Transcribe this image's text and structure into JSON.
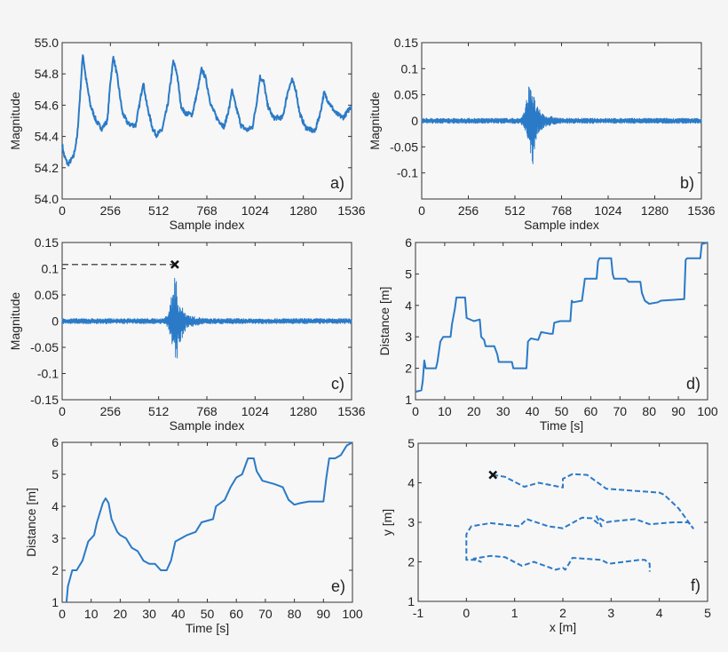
{
  "chart_data": [
    {
      "id": "a",
      "type": "line",
      "panel_label": "a)",
      "xlabel": "Sample index",
      "ylabel": "Magnitude",
      "xlim": [
        0,
        1536
      ],
      "ylim": [
        54.0,
        55.0
      ],
      "xticks": [
        0,
        256,
        512,
        768,
        1024,
        1280,
        1536
      ],
      "xtick_labels": [
        "0",
        "256",
        "512",
        "768",
        "1024",
        "1280",
        "1536"
      ],
      "yticks": [
        54.0,
        54.2,
        54.4,
        54.6,
        54.8,
        55.0
      ],
      "ytick_labels": [
        "54.0",
        "54.2",
        "54.4",
        "54.6",
        "54.8",
        "55.0"
      ],
      "line_style": "solid",
      "noisy": true,
      "points": [
        [
          0,
          54.35
        ],
        [
          10,
          54.28
        ],
        [
          30,
          54.22
        ],
        [
          60,
          54.27
        ],
        [
          80,
          54.4
        ],
        [
          100,
          54.75
        ],
        [
          110,
          54.93
        ],
        [
          125,
          54.78
        ],
        [
          150,
          54.6
        ],
        [
          180,
          54.5
        ],
        [
          210,
          54.45
        ],
        [
          240,
          54.5
        ],
        [
          256,
          54.75
        ],
        [
          272,
          54.91
        ],
        [
          290,
          54.8
        ],
        [
          320,
          54.55
        ],
        [
          350,
          54.48
        ],
        [
          390,
          54.47
        ],
        [
          410,
          54.6
        ],
        [
          430,
          54.75
        ],
        [
          450,
          54.6
        ],
        [
          480,
          54.45
        ],
        [
          500,
          54.41
        ],
        [
          530,
          54.44
        ],
        [
          560,
          54.6
        ],
        [
          590,
          54.88
        ],
        [
          610,
          54.8
        ],
        [
          630,
          54.6
        ],
        [
          650,
          54.55
        ],
        [
          690,
          54.54
        ],
        [
          720,
          54.7
        ],
        [
          740,
          54.83
        ],
        [
          760,
          54.78
        ],
        [
          790,
          54.6
        ],
        [
          820,
          54.52
        ],
        [
          860,
          54.46
        ],
        [
          890,
          54.6
        ],
        [
          900,
          54.7
        ],
        [
          920,
          54.6
        ],
        [
          950,
          54.47
        ],
        [
          980,
          54.44
        ],
        [
          1010,
          54.46
        ],
        [
          1030,
          54.6
        ],
        [
          1050,
          54.78
        ],
        [
          1070,
          54.75
        ],
        [
          1090,
          54.6
        ],
        [
          1120,
          54.52
        ],
        [
          1170,
          54.52
        ],
        [
          1200,
          54.7
        ],
        [
          1220,
          54.76
        ],
        [
          1240,
          54.7
        ],
        [
          1260,
          54.55
        ],
        [
          1290,
          54.46
        ],
        [
          1340,
          54.43
        ],
        [
          1370,
          54.55
        ],
        [
          1390,
          54.68
        ],
        [
          1410,
          54.63
        ],
        [
          1450,
          54.55
        ],
        [
          1490,
          54.52
        ],
        [
          1510,
          54.55
        ],
        [
          1536,
          54.6
        ]
      ]
    },
    {
      "id": "b",
      "type": "line",
      "panel_label": "b)",
      "xlabel": "Sample index",
      "ylabel": "Magnitude",
      "xlim": [
        0,
        1536
      ],
      "ylim": [
        -0.15,
        0.15
      ],
      "xticks": [
        0,
        256,
        512,
        768,
        1024,
        1280,
        1536
      ],
      "xtick_labels": [
        "0",
        "256",
        "512",
        "768",
        "1024",
        "1280",
        "1536"
      ],
      "yticks": [
        -0.15,
        -0.1,
        -0.05,
        0,
        0.05,
        0.1,
        0.15
      ],
      "ytick_labels": [
        "",
        "-0.1",
        "-0.05",
        "0",
        "0.05",
        "0.1",
        "0.15"
      ],
      "envelope": [
        [
          0,
          0.005,
          -0.005
        ],
        [
          540,
          0.005,
          -0.005
        ],
        [
          555,
          0.012,
          -0.01
        ],
        [
          570,
          0.03,
          -0.03
        ],
        [
          585,
          0.06,
          -0.05
        ],
        [
          598,
          0.1,
          -0.06
        ],
        [
          605,
          0.08,
          -0.1
        ],
        [
          615,
          0.05,
          -0.07
        ],
        [
          630,
          0.03,
          -0.04
        ],
        [
          650,
          0.02,
          -0.02
        ],
        [
          680,
          0.01,
          -0.012
        ],
        [
          720,
          0.008,
          -0.008
        ],
        [
          760,
          0.005,
          -0.005
        ],
        [
          1536,
          0.005,
          -0.005
        ]
      ]
    },
    {
      "id": "c",
      "type": "line",
      "panel_label": "c)",
      "xlabel": "Sample index",
      "ylabel": "Magnitude",
      "xlim": [
        0,
        1536
      ],
      "ylim": [
        -0.15,
        0.15
      ],
      "xticks": [
        0,
        256,
        512,
        768,
        1024,
        1280,
        1536
      ],
      "xtick_labels": [
        "0",
        "256",
        "512",
        "768",
        "1024",
        "1280",
        "1536"
      ],
      "yticks": [
        -0.15,
        -0.1,
        -0.05,
        0,
        0.05,
        0.1,
        0.15
      ],
      "ytick_labels": [
        "-0.15",
        "-0.1",
        "-0.05",
        "0",
        "0.05",
        "0.1",
        "0.15"
      ],
      "envelope": [
        [
          0,
          0.005,
          -0.005
        ],
        [
          540,
          0.005,
          -0.005
        ],
        [
          555,
          0.012,
          -0.01
        ],
        [
          570,
          0.03,
          -0.03
        ],
        [
          585,
          0.06,
          -0.05
        ],
        [
          598,
          0.108,
          -0.06
        ],
        [
          605,
          0.08,
          -0.1
        ],
        [
          615,
          0.05,
          -0.07
        ],
        [
          630,
          0.03,
          -0.04
        ],
        [
          650,
          0.02,
          -0.02
        ],
        [
          680,
          0.01,
          -0.012
        ],
        [
          720,
          0.008,
          -0.008
        ],
        [
          760,
          0.005,
          -0.005
        ],
        [
          1536,
          0.005,
          -0.005
        ]
      ],
      "peak_marker": {
        "x": 598,
        "y": 0.108,
        "symbol": "x",
        "guide": "dashed"
      }
    },
    {
      "id": "d",
      "type": "line",
      "panel_label": "d)",
      "xlabel": "Time [s]",
      "ylabel": "Distance [m]",
      "xlim": [
        0,
        100
      ],
      "ylim": [
        1,
        6
      ],
      "xticks": [
        0,
        10,
        20,
        30,
        40,
        50,
        60,
        70,
        80,
        90,
        100
      ],
      "xtick_labels": [
        "0",
        "10",
        "20",
        "30",
        "40",
        "50",
        "60",
        "70",
        "80",
        "90",
        "100"
      ],
      "yticks": [
        1,
        2,
        3,
        4,
        5,
        6
      ],
      "ytick_labels": [
        "1",
        "2",
        "3",
        "4",
        "5",
        "6"
      ],
      "line_style": "solid",
      "points": [
        [
          0,
          1.25
        ],
        [
          2,
          1.3
        ],
        [
          2.5,
          1.6
        ],
        [
          3,
          2.25
        ],
        [
          3.5,
          2.0
        ],
        [
          7,
          2.0
        ],
        [
          7.5,
          2.2
        ],
        [
          8.5,
          2.85
        ],
        [
          9.5,
          3.0
        ],
        [
          12,
          3.0
        ],
        [
          12.5,
          3.4
        ],
        [
          13.5,
          3.9
        ],
        [
          14,
          4.25
        ],
        [
          17,
          4.25
        ],
        [
          17.5,
          3.6
        ],
        [
          20,
          3.5
        ],
        [
          22,
          3.55
        ],
        [
          22.5,
          3.0
        ],
        [
          23.5,
          2.9
        ],
        [
          24,
          2.7
        ],
        [
          27,
          2.7
        ],
        [
          28,
          2.45
        ],
        [
          28.5,
          2.2
        ],
        [
          33,
          2.2
        ],
        [
          33.5,
          2.0
        ],
        [
          38,
          2.0
        ],
        [
          38.5,
          2.85
        ],
        [
          39.5,
          2.95
        ],
        [
          42,
          2.9
        ],
        [
          43,
          3.15
        ],
        [
          46,
          3.1
        ],
        [
          47,
          3.1
        ],
        [
          47.5,
          3.45
        ],
        [
          49.5,
          3.5
        ],
        [
          53,
          3.5
        ],
        [
          53.5,
          4.15
        ],
        [
          54,
          4.1
        ],
        [
          57,
          4.15
        ],
        [
          58,
          4.85
        ],
        [
          62,
          4.85
        ],
        [
          62.5,
          5.4
        ],
        [
          63,
          5.5
        ],
        [
          67,
          5.5
        ],
        [
          67.5,
          5.0
        ],
        [
          68,
          4.85
        ],
        [
          72,
          4.85
        ],
        [
          73,
          4.75
        ],
        [
          77,
          4.75
        ],
        [
          77.5,
          4.4
        ],
        [
          78.5,
          4.15
        ],
        [
          80,
          4.05
        ],
        [
          83,
          4.1
        ],
        [
          84,
          4.15
        ],
        [
          92,
          4.2
        ],
        [
          92.5,
          5.45
        ],
        [
          93,
          5.5
        ],
        [
          97.5,
          5.5
        ],
        [
          98,
          5.95
        ],
        [
          100,
          6.0
        ]
      ]
    },
    {
      "id": "e",
      "type": "line",
      "panel_label": "e)",
      "xlabel": "Time [s]",
      "ylabel": "Distance [m]",
      "xlim": [
        0,
        100
      ],
      "ylim": [
        1,
        6
      ],
      "xticks": [
        0,
        10,
        20,
        30,
        40,
        50,
        60,
        70,
        80,
        90,
        100
      ],
      "xtick_labels": [
        "0",
        "10",
        "20",
        "30",
        "40",
        "50",
        "60",
        "70",
        "80",
        "90",
        "100"
      ],
      "yticks": [
        1,
        2,
        3,
        4,
        5,
        6
      ],
      "ytick_labels": [
        "1",
        "2",
        "3",
        "4",
        "5",
        "6"
      ],
      "line_style": "solid",
      "points": [
        [
          1.5,
          1.0
        ],
        [
          2,
          1.5
        ],
        [
          3.5,
          2.0
        ],
        [
          5,
          2.0
        ],
        [
          7,
          2.3
        ],
        [
          9,
          2.9
        ],
        [
          11,
          3.1
        ],
        [
          12,
          3.5
        ],
        [
          14,
          4.1
        ],
        [
          15,
          4.25
        ],
        [
          16,
          4.1
        ],
        [
          17,
          3.6
        ],
        [
          19,
          3.2
        ],
        [
          20,
          3.1
        ],
        [
          22,
          3.0
        ],
        [
          24,
          2.7
        ],
        [
          26,
          2.6
        ],
        [
          28,
          2.3
        ],
        [
          30,
          2.2
        ],
        [
          32,
          2.2
        ],
        [
          34,
          2.0
        ],
        [
          36,
          2.0
        ],
        [
          37.5,
          2.3
        ],
        [
          39,
          2.9
        ],
        [
          41,
          3.0
        ],
        [
          43,
          3.1
        ],
        [
          46,
          3.2
        ],
        [
          48,
          3.5
        ],
        [
          52,
          3.6
        ],
        [
          53,
          4.0
        ],
        [
          56,
          4.2
        ],
        [
          58,
          4.6
        ],
        [
          60,
          4.9
        ],
        [
          62,
          5.0
        ],
        [
          64,
          5.5
        ],
        [
          66,
          5.5
        ],
        [
          67,
          5.1
        ],
        [
          69,
          4.8
        ],
        [
          73,
          4.7
        ],
        [
          76,
          4.6
        ],
        [
          78,
          4.2
        ],
        [
          80,
          4.05
        ],
        [
          82,
          4.1
        ],
        [
          85,
          4.15
        ],
        [
          90,
          4.15
        ],
        [
          91,
          4.9
        ],
        [
          92,
          5.5
        ],
        [
          94,
          5.5
        ],
        [
          96,
          5.6
        ],
        [
          98,
          5.9
        ],
        [
          100,
          6.0
        ]
      ]
    },
    {
      "id": "f",
      "type": "line",
      "panel_label": "f)",
      "xlabel": "x [m]",
      "ylabel": "y [m]",
      "xlim": [
        -1,
        5
      ],
      "ylim": [
        1,
        5
      ],
      "xticks": [
        -1,
        0,
        1,
        2,
        3,
        4,
        5
      ],
      "xtick_labels": [
        "-1",
        "0",
        "1",
        "2",
        "3",
        "4",
        "5"
      ],
      "yticks": [
        1,
        2,
        3,
        4,
        5
      ],
      "ytick_labels": [
        "1",
        "2",
        "3",
        "4",
        "5"
      ],
      "line_style": "dashed",
      "start_marker": {
        "x": 0.55,
        "y": 4.2,
        "symbol": "x"
      },
      "points": [
        [
          0.55,
          4.2
        ],
        [
          0.8,
          4.15
        ],
        [
          1.2,
          3.9
        ],
        [
          1.5,
          4.0
        ],
        [
          2.0,
          3.88
        ],
        [
          2.0,
          4.1
        ],
        [
          2.2,
          4.22
        ],
        [
          2.5,
          4.2
        ],
        [
          2.9,
          3.85
        ],
        [
          4.0,
          3.75
        ],
        [
          4.1,
          3.7
        ],
        [
          4.4,
          3.35
        ],
        [
          4.7,
          2.85
        ],
        [
          4.6,
          3.0
        ],
        [
          4.3,
          3.0
        ],
        [
          3.8,
          2.95
        ],
        [
          3.5,
          3.08
        ],
        [
          3.0,
          3.02
        ],
        [
          2.9,
          3.0
        ],
        [
          2.7,
          3.15
        ],
        [
          2.8,
          2.9
        ],
        [
          2.6,
          3.1
        ],
        [
          2.4,
          3.12
        ],
        [
          2.0,
          2.85
        ],
        [
          1.7,
          2.9
        ],
        [
          1.25,
          3.08
        ],
        [
          1.1,
          2.9
        ],
        [
          0.5,
          2.98
        ],
        [
          0.1,
          2.9
        ],
        [
          0.0,
          2.7
        ],
        [
          0.0,
          2.05
        ],
        [
          0.2,
          2.05
        ],
        [
          0.3,
          2.0
        ],
        [
          0.15,
          2.08
        ],
        [
          0.5,
          2.15
        ],
        [
          0.8,
          2.12
        ],
        [
          1.15,
          1.9
        ],
        [
          1.4,
          2.0
        ],
        [
          1.85,
          1.8
        ],
        [
          2.0,
          1.85
        ],
        [
          2.05,
          1.8
        ],
        [
          2.2,
          2.1
        ],
        [
          2.8,
          2.05
        ],
        [
          2.95,
          1.95
        ],
        [
          3.6,
          2.05
        ],
        [
          3.7,
          2.05
        ],
        [
          3.8,
          1.95
        ],
        [
          3.8,
          1.75
        ]
      ]
    }
  ],
  "colors": {
    "series": "#2a7ac7",
    "marker": "#111111",
    "guide": "#555555",
    "axis": "#333333",
    "background": "#f5f5f5"
  }
}
